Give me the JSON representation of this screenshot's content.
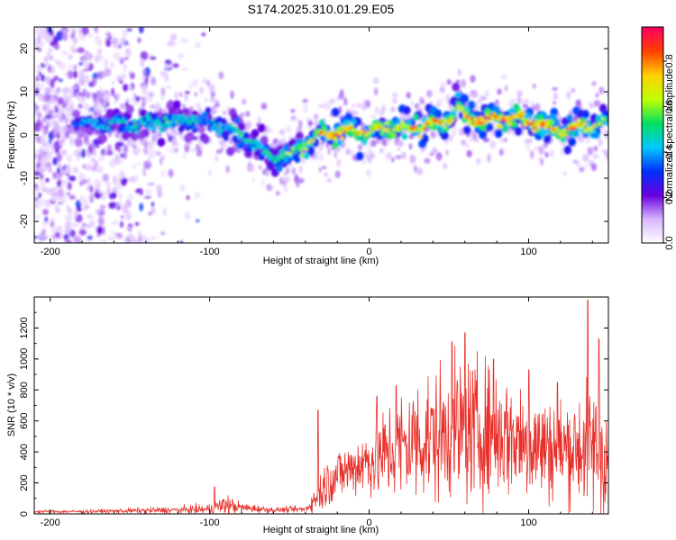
{
  "chart_data": [
    {
      "type": "heatmap",
      "title": "S174.2025.310.01.29.E05",
      "xlabel": "Height of straight line (km)",
      "ylabel": "Frequency (Hz)",
      "xlim": [
        -210,
        150
      ],
      "ylim": [
        -25,
        25
      ],
      "x_ticks": [
        -200,
        -100,
        0,
        100
      ],
      "y_ticks": [
        -20,
        -10,
        0,
        10,
        20
      ],
      "colorbar": {
        "label": "Normalized spectral amplitude",
        "range": [
          0,
          0.95
        ],
        "ticks": [
          0.0,
          0.2,
          0.4,
          0.6,
          0.8
        ],
        "colors": [
          "#ffffff",
          "#d9b8ff",
          "#6a00e0",
          "#0030ff",
          "#00c8ff",
          "#00e060",
          "#c0ff00",
          "#ffd000",
          "#ff4000",
          "#ff0060"
        ]
      },
      "ridge": {
        "x": [
          -210,
          -190,
          -170,
          -150,
          -130,
          -110,
          -100,
          -90,
          -80,
          -70,
          -60,
          -50,
          -40,
          -30,
          -20,
          -10,
          0,
          10,
          20,
          30,
          40,
          50,
          55,
          60,
          70,
          80,
          90,
          100,
          110,
          120,
          130,
          140,
          150
        ],
        "freq": [
          3,
          3,
          2.5,
          2.5,
          3,
          3.5,
          3,
          2,
          0,
          -3,
          -5,
          -5,
          -2,
          0,
          0.5,
          1,
          1,
          1.5,
          1.5,
          2,
          2.5,
          3.5,
          7,
          4,
          3.5,
          4,
          4,
          3,
          2,
          1,
          1.5,
          2.5,
          3
        ],
        "amplitude": [
          0.25,
          0.35,
          0.45,
          0.5,
          0.55,
          0.5,
          0.45,
          0.5,
          0.55,
          0.5,
          0.55,
          0.6,
          0.65,
          0.8,
          0.85,
          0.8,
          0.75,
          0.8,
          0.75,
          0.8,
          0.85,
          0.8,
          0.6,
          0.8,
          0.9,
          0.9,
          0.85,
          0.85,
          0.9,
          0.8,
          0.8,
          0.7,
          0.6
        ]
      }
    },
    {
      "type": "line",
      "xlabel": "Height of straight line (km)",
      "ylabel": "SNR (10 * v/v)",
      "xlim": [
        -210,
        150
      ],
      "ylim": [
        0,
        1400
      ],
      "x_ticks": [
        -200,
        -100,
        0,
        100
      ],
      "y_ticks": [
        0,
        200,
        400,
        600,
        800,
        1000,
        1200
      ],
      "color": "#e8302a",
      "envelope": {
        "x": [
          -210,
          -180,
          -150,
          -120,
          -100,
          -90,
          -80,
          -60,
          -40,
          -35,
          -30,
          -25,
          -20,
          -10,
          0,
          10,
          20,
          30,
          40,
          50,
          60,
          70,
          80,
          90,
          100,
          110,
          120,
          130,
          140,
          145,
          150
        ],
        "mean": [
          15,
          15,
          20,
          25,
          30,
          60,
          40,
          25,
          30,
          80,
          150,
          220,
          250,
          300,
          350,
          380,
          430,
          480,
          500,
          520,
          540,
          530,
          520,
          500,
          460,
          430,
          420,
          430,
          430,
          400,
          350
        ],
        "spread": [
          10,
          10,
          15,
          20,
          30,
          60,
          30,
          15,
          20,
          60,
          120,
          150,
          150,
          170,
          220,
          280,
          330,
          370,
          380,
          400,
          420,
          400,
          380,
          350,
          330,
          320,
          300,
          330,
          380,
          400,
          350
        ]
      },
      "peaks": [
        {
          "x": -97,
          "y": 175
        },
        {
          "x": -32,
          "y": 670
        },
        {
          "x": 5,
          "y": 760
        },
        {
          "x": 17,
          "y": 830
        },
        {
          "x": 52,
          "y": 1110
        },
        {
          "x": 60,
          "y": 1170
        },
        {
          "x": 78,
          "y": 1000
        },
        {
          "x": 100,
          "y": 930
        },
        {
          "x": 118,
          "y": 850
        },
        {
          "x": 137,
          "y": 1380
        },
        {
          "x": 144,
          "y": 1130
        }
      ]
    }
  ]
}
